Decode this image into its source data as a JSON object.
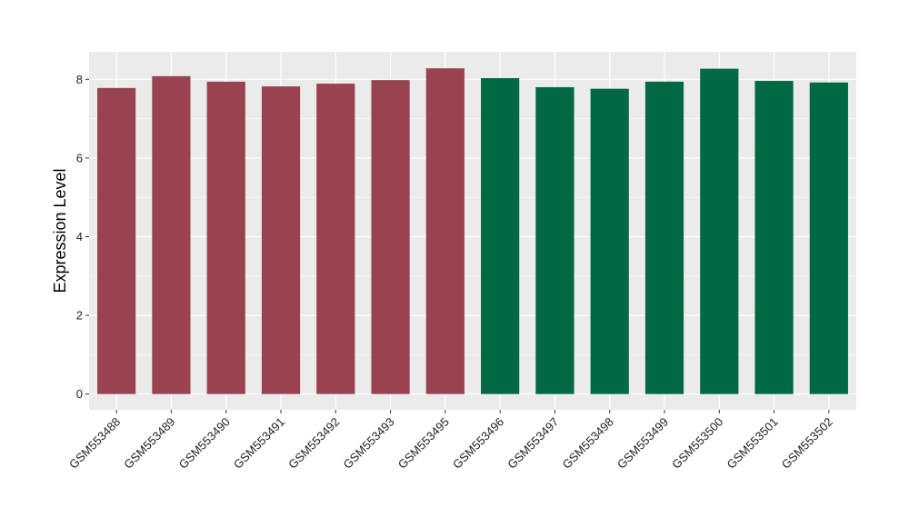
{
  "chart_data": {
    "type": "bar",
    "ylabel": "Expression Level",
    "xlabel": "",
    "ylim": [
      -0.4,
      8.7
    ],
    "yticks": [
      0,
      2,
      4,
      6,
      8
    ],
    "grid": true,
    "legend": "none",
    "categories": [
      "GSM553488",
      "GSM553489",
      "GSM553490",
      "GSM553491",
      "GSM553492",
      "GSM553493",
      "GSM553495",
      "GSM553496",
      "GSM553497",
      "GSM553498",
      "GSM553499",
      "GSM553500",
      "GSM553501",
      "GSM553502"
    ],
    "values": [
      7.78,
      8.08,
      7.94,
      7.82,
      7.89,
      7.98,
      8.28,
      8.03,
      7.8,
      7.76,
      7.94,
      8.27,
      7.96,
      7.92
    ],
    "bar_colors": [
      "#9a4350",
      "#9a4350",
      "#9a4350",
      "#9a4350",
      "#9a4350",
      "#9a4350",
      "#9a4350",
      "#006944",
      "#006944",
      "#006944",
      "#006944",
      "#006944",
      "#006944",
      "#006944"
    ],
    "panel_background": "#ebebeb",
    "gridline_color": "#ffffff"
  }
}
